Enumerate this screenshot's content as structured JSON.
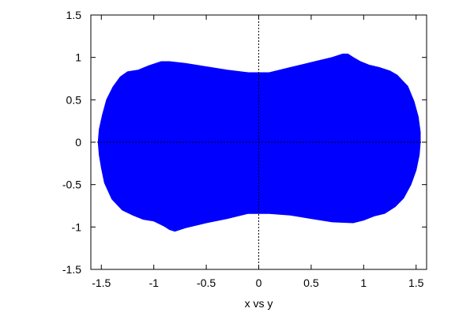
{
  "chart_data": {
    "type": "area",
    "title": "",
    "xlabel": "x vs y",
    "ylabel": "",
    "xlim": [
      -1.6,
      1.6
    ],
    "ylim": [
      -1.5,
      1.5
    ],
    "xticks": [
      -1.5,
      -1,
      -0.5,
      0,
      0.5,
      1,
      1.5
    ],
    "xtick_labels": [
      "-1.5",
      "-1",
      "-0.5",
      "0",
      "0.5",
      "1",
      "1.5"
    ],
    "yticks": [
      -1.5,
      -1,
      -0.5,
      0,
      0.5,
      1,
      1.5
    ],
    "ytick_labels": [
      "-1.5",
      "-1",
      "-0.5",
      "0",
      "0.5",
      "1",
      "1.5"
    ],
    "grid": false,
    "zero_axes": "dotted lines at x=0 and y=0",
    "legend": "none",
    "series": [
      {
        "color": "#0000ff",
        "outline": [
          [
            -1.53,
            0.0
          ],
          [
            -1.52,
            0.15
          ],
          [
            -1.49,
            0.32
          ],
          [
            -1.45,
            0.5
          ],
          [
            -1.39,
            0.65
          ],
          [
            -1.32,
            0.77
          ],
          [
            -1.25,
            0.83
          ],
          [
            -1.15,
            0.85
          ],
          [
            -1.05,
            0.9
          ],
          [
            -0.93,
            0.95
          ],
          [
            -0.85,
            0.95
          ],
          [
            -0.7,
            0.93
          ],
          [
            -0.5,
            0.89
          ],
          [
            -0.3,
            0.85
          ],
          [
            -0.1,
            0.82
          ],
          [
            0.0,
            0.82
          ],
          [
            0.1,
            0.82
          ],
          [
            0.3,
            0.88
          ],
          [
            0.5,
            0.94
          ],
          [
            0.7,
            1.0
          ],
          [
            0.8,
            1.04
          ],
          [
            0.85,
            1.04
          ],
          [
            0.9,
            1.0
          ],
          [
            0.97,
            0.95
          ],
          [
            1.05,
            0.91
          ],
          [
            1.15,
            0.88
          ],
          [
            1.25,
            0.84
          ],
          [
            1.32,
            0.79
          ],
          [
            1.42,
            0.66
          ],
          [
            1.48,
            0.48
          ],
          [
            1.52,
            0.3
          ],
          [
            1.54,
            0.12
          ],
          [
            1.54,
            0.0
          ],
          [
            1.53,
            -0.15
          ],
          [
            1.5,
            -0.33
          ],
          [
            1.45,
            -0.5
          ],
          [
            1.38,
            -0.66
          ],
          [
            1.3,
            -0.76
          ],
          [
            1.2,
            -0.84
          ],
          [
            1.1,
            -0.87
          ],
          [
            1.0,
            -0.92
          ],
          [
            0.9,
            -0.95
          ],
          [
            0.7,
            -0.94
          ],
          [
            0.5,
            -0.9
          ],
          [
            0.3,
            -0.86
          ],
          [
            0.1,
            -0.84
          ],
          [
            0.0,
            -0.84
          ],
          [
            -0.1,
            -0.84
          ],
          [
            -0.3,
            -0.9
          ],
          [
            -0.5,
            -0.95
          ],
          [
            -0.7,
            -1.01
          ],
          [
            -0.8,
            -1.05
          ],
          [
            -0.85,
            -1.03
          ],
          [
            -0.9,
            -0.99
          ],
          [
            -1.0,
            -0.93
          ],
          [
            -1.1,
            -0.91
          ],
          [
            -1.2,
            -0.86
          ],
          [
            -1.3,
            -0.8
          ],
          [
            -1.4,
            -0.67
          ],
          [
            -1.47,
            -0.48
          ],
          [
            -1.5,
            -0.3
          ],
          [
            -1.52,
            -0.15
          ]
        ]
      }
    ]
  }
}
